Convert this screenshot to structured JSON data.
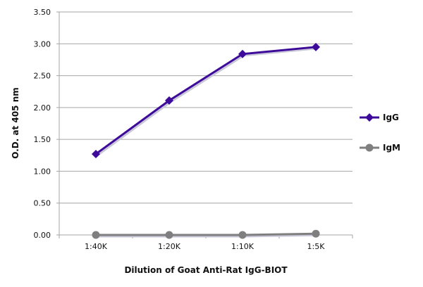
{
  "chart_data": {
    "type": "line",
    "title": "",
    "xlabel": "Dilution of Goat Anti-Rat IgG-BIOT",
    "ylabel": "O.D. at 405 nm",
    "categories": [
      "1:40K",
      "1:20K",
      "1:10K",
      "1:5K"
    ],
    "ylim": [
      0,
      3.5
    ],
    "yticks": [
      "0.00",
      "0.50",
      "1.00",
      "1.50",
      "2.00",
      "2.50",
      "3.00",
      "3.50"
    ],
    "grid": true,
    "legend_position": "right",
    "series": [
      {
        "name": "IgG",
        "values": [
          1.27,
          2.11,
          2.84,
          2.95
        ],
        "color": "#3d0a9a",
        "marker": "diamond"
      },
      {
        "name": "IgM",
        "values": [
          0.0,
          0.0,
          0.0,
          0.02
        ],
        "color": "#7f7f7f",
        "marker": "circle"
      }
    ]
  }
}
